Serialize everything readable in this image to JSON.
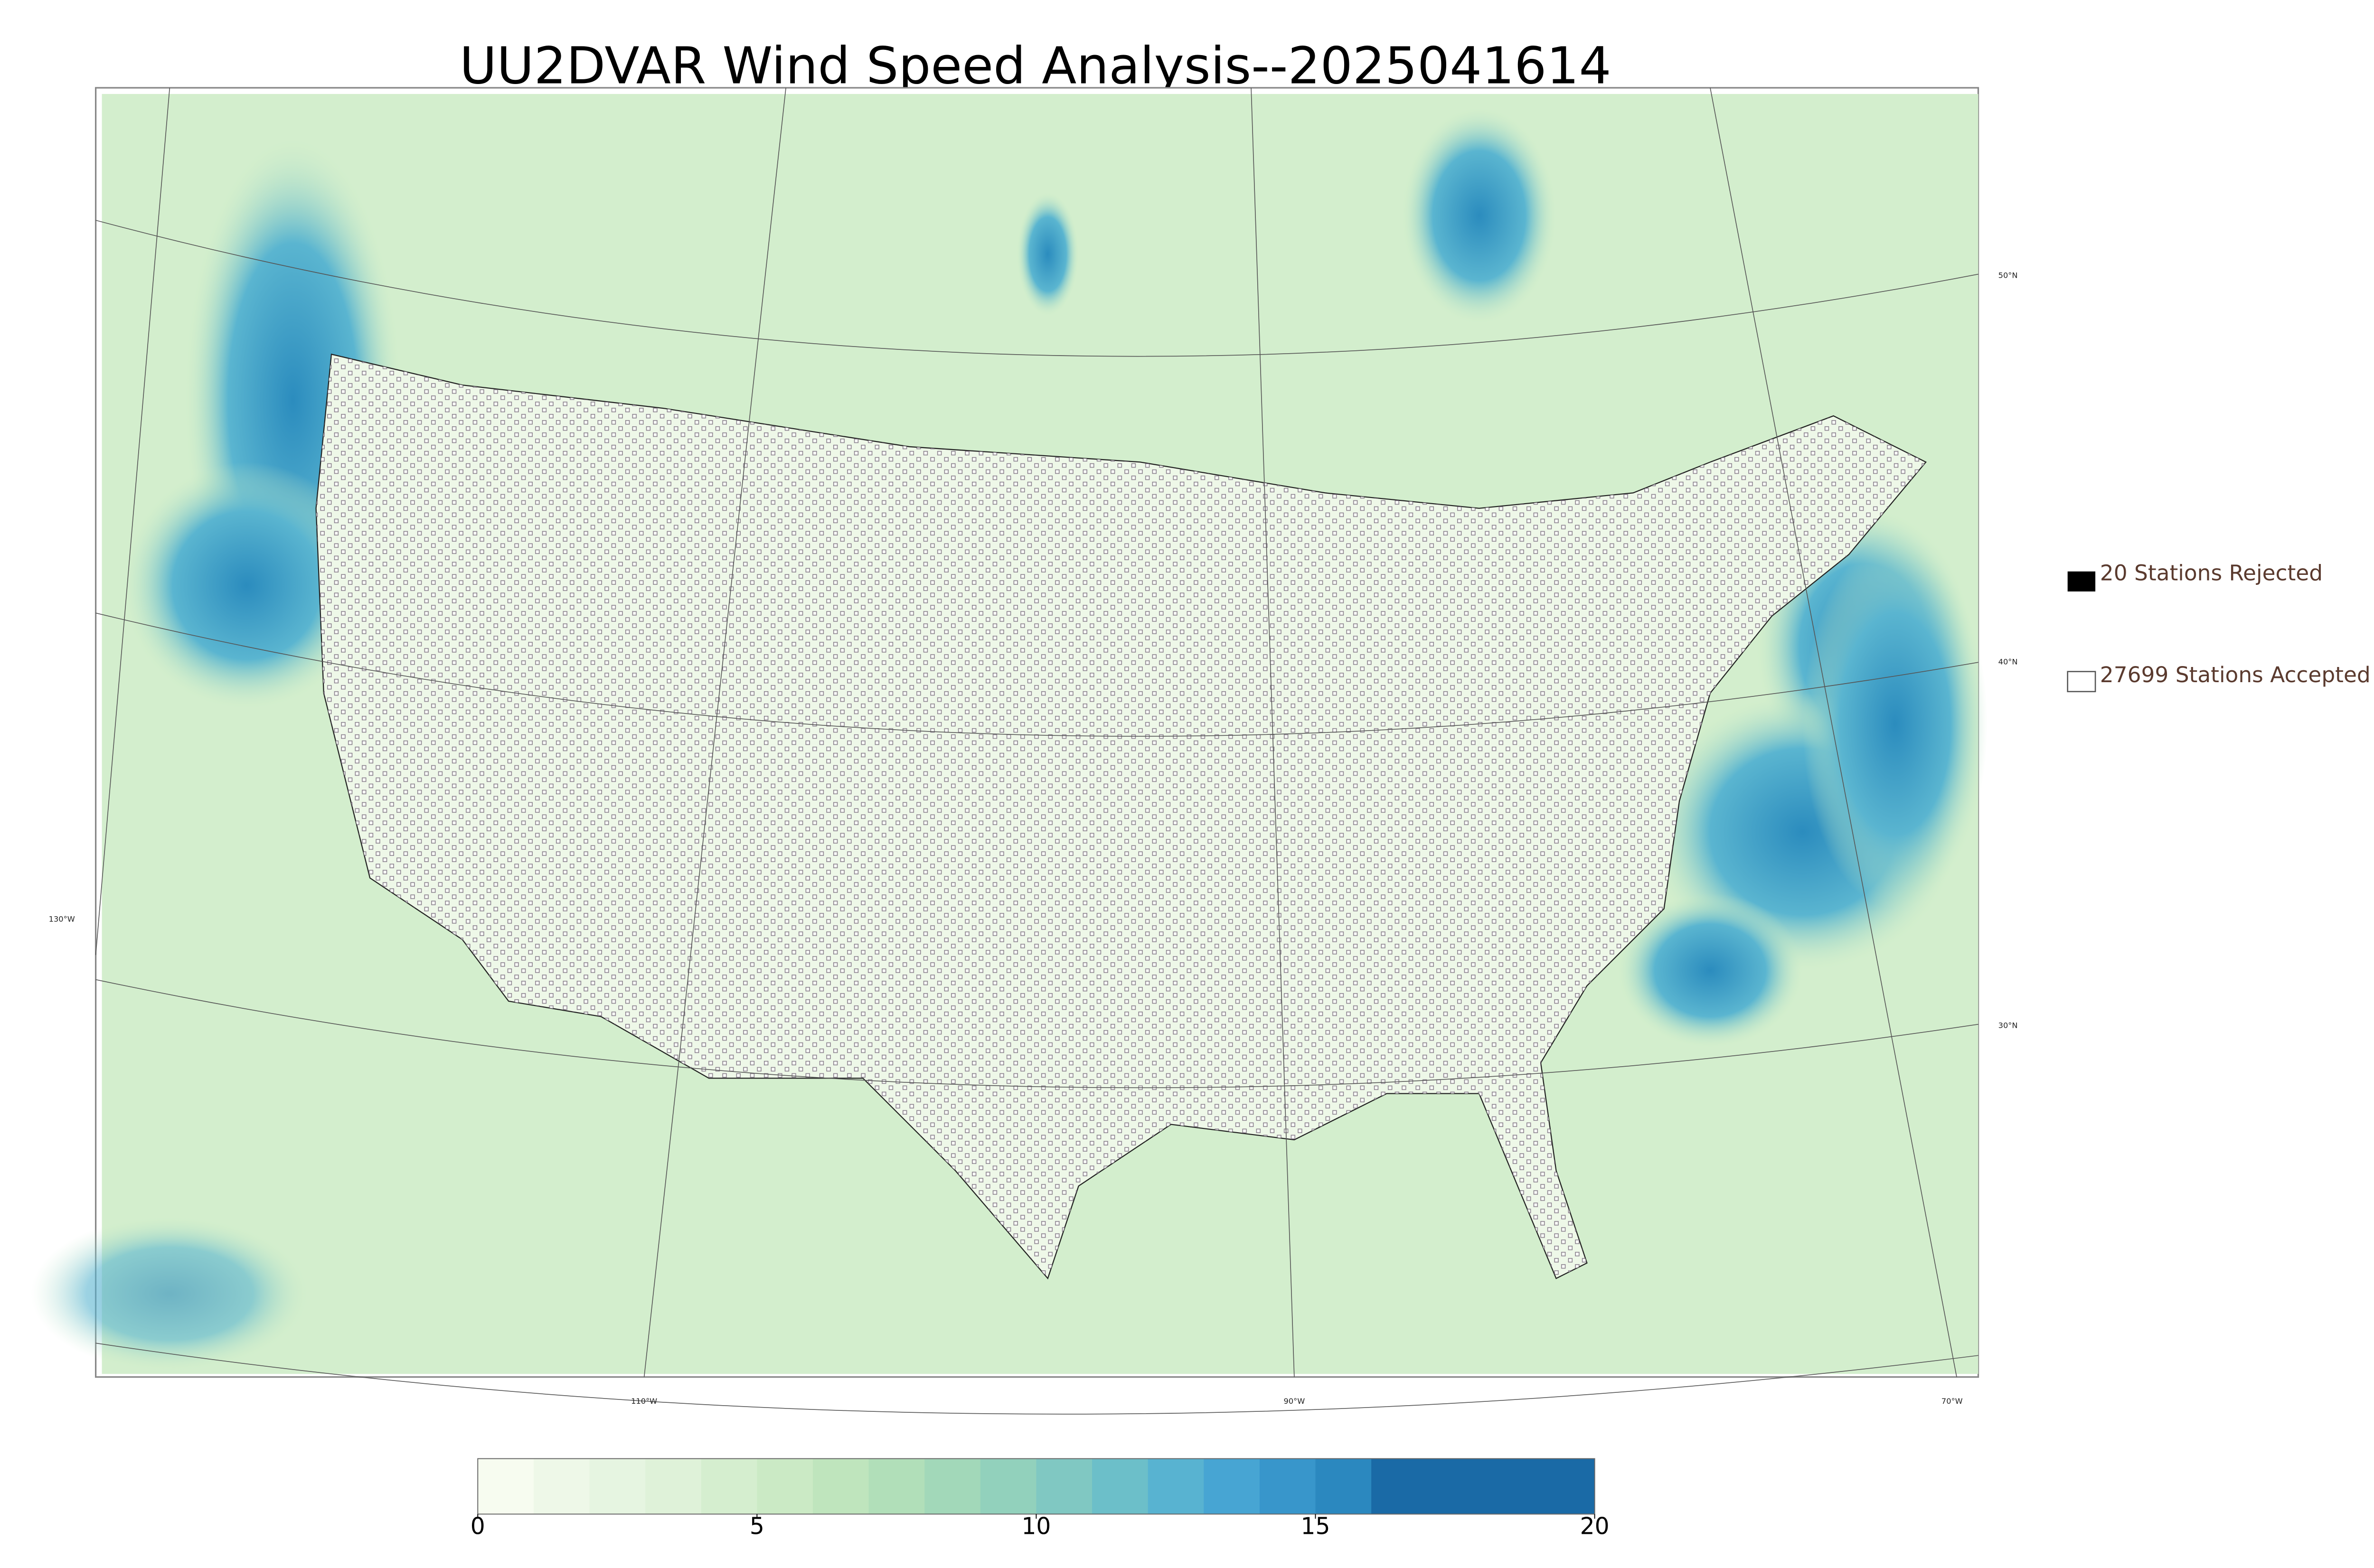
{
  "title": "UU2DVAR Wind Speed Analysis--2025041614",
  "legend": {
    "rejected": "20 Stations Rejected",
    "accepted": "27699 Stations Accepted"
  },
  "graticule": {
    "lat_labels": [
      "50°N",
      "40°N",
      "30°N"
    ],
    "lon_labels": [
      "130°W",
      "110°W",
      "90°W",
      "70°W"
    ]
  },
  "colorbar": {
    "lim": [
      0,
      20
    ],
    "ticks": [
      0,
      5,
      10,
      15,
      20
    ],
    "colors": [
      "#f7fcf0",
      "#eef8e8",
      "#e6f5e1",
      "#dff2d9",
      "#d5eecf",
      "#cbeac5",
      "#bfe5bd",
      "#b1dfb9",
      "#a2d8b9",
      "#92d1bc",
      "#80c8c2",
      "#6cbfc9",
      "#58b3d1",
      "#47a5d3",
      "#3896cb",
      "#2b88bf",
      "#1a6aa6",
      "#1a6aa6",
      "#1a6aa6",
      "#1a6aa6"
    ]
  }
}
